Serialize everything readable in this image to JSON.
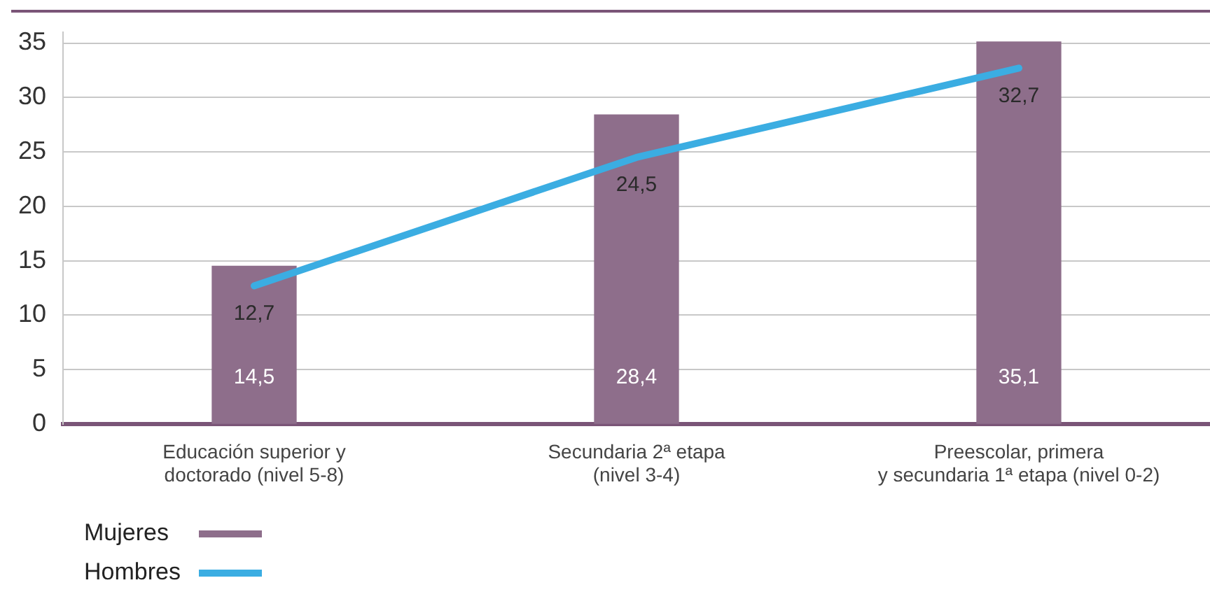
{
  "chart_data": {
    "type": "bar",
    "categories": [
      "Educación superior y\ndoctorado (nivel 5-8)",
      "Secundaria 2ª etapa\n(nivel 3-4)",
      "Preescolar, primera\ny secundaria 1ª etapa (nivel 0-2)"
    ],
    "series": [
      {
        "name": "Mujeres",
        "type": "bar",
        "color": "#8e6e8b",
        "values": [
          14.5,
          28.4,
          35.1
        ],
        "value_labels": [
          "14,5",
          "28,4",
          "35,1"
        ]
      },
      {
        "name": "Hombres",
        "type": "line",
        "color": "#3badE2",
        "values": [
          12.7,
          24.5,
          32.7
        ],
        "value_labels": [
          "12,7",
          "24,5",
          "32,7"
        ]
      }
    ],
    "ylim": [
      0,
      36
    ],
    "yticks": [
      0,
      5,
      10,
      15,
      20,
      25,
      30,
      35
    ],
    "grid": "y",
    "legend": "bottom left",
    "marker": "none",
    "line_style": "solid"
  }
}
